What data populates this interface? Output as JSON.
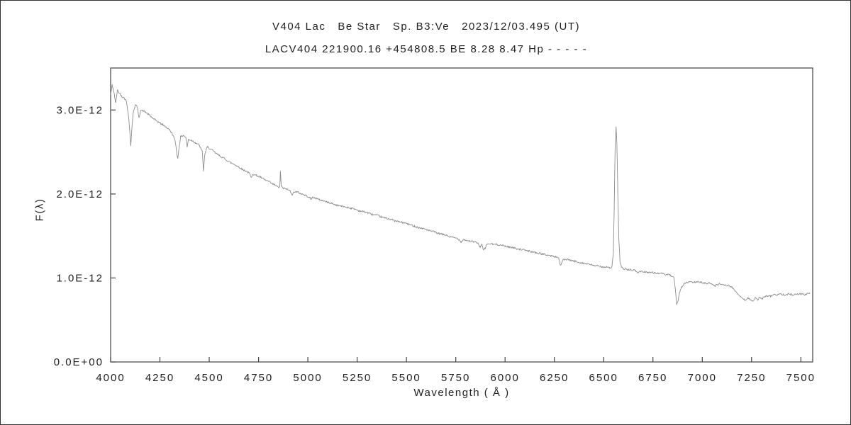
{
  "chart_data": {
    "type": "line",
    "title": "V404 Lac   Be Star   Sp. B3:Ve   2023/12/03.495 (UT)",
    "subtitle": "LACV404 221900.16 +454808.5 BE 8.28 8.47 Hp - - - - -",
    "xlabel": "Wavelength ( Å )",
    "ylabel": "F(λ)",
    "xlim": [
      4000,
      7560
    ],
    "ylim_e12": [
      0,
      3.5
    ],
    "xticks": [
      4000,
      4250,
      4500,
      4750,
      5000,
      5250,
      5500,
      5750,
      6000,
      6250,
      6500,
      6750,
      7000,
      7250,
      7500
    ],
    "yticks": [
      {
        "value_e12": 0.0,
        "label": "0.0E+00"
      },
      {
        "value_e12": 1.0,
        "label": "1.0E-12"
      },
      {
        "value_e12": 2.0,
        "label": "2.0E-12"
      },
      {
        "value_e12": 3.0,
        "label": "3.0E-12"
      }
    ],
    "grid": false,
    "legend": "none",
    "line_color": "#8c8c8c",
    "axis_color": "#444444",
    "text_color": "#222222",
    "noise_seed": 42,
    "noise_e12": 0.011,
    "features": [
      {
        "name": "H-delta absorption",
        "wavelength": 4102
      },
      {
        "name": "H-gamma absorption",
        "wavelength": 4340
      },
      {
        "name": "He I absorption",
        "wavelength": 4471
      },
      {
        "name": "H-beta emission spike",
        "wavelength": 4861
      },
      {
        "name": "Na D absorption",
        "wavelength": 5890
      },
      {
        "name": "H-alpha emission peak",
        "wavelength": 6563,
        "peak_e12": 2.8
      },
      {
        "name": "telluric O2 B-band absorption",
        "wavelength": 6870
      },
      {
        "name": "telluric H2O absorption band",
        "wavelength": 7200
      }
    ],
    "series": [
      {
        "name": "spectrum",
        "points_e12": [
          [
            4000,
            3.18
          ],
          [
            4008,
            3.3
          ],
          [
            4016,
            3.22
          ],
          [
            4026,
            3.08
          ],
          [
            4034,
            3.24
          ],
          [
            4045,
            3.2
          ],
          [
            4058,
            3.16
          ],
          [
            4070,
            3.14
          ],
          [
            4080,
            3.1
          ],
          [
            4090,
            2.95
          ],
          [
            4097,
            2.75
          ],
          [
            4102,
            2.58
          ],
          [
            4108,
            2.78
          ],
          [
            4115,
            2.98
          ],
          [
            4125,
            3.06
          ],
          [
            4135,
            3.04
          ],
          [
            4144,
            2.9
          ],
          [
            4152,
            3.0
          ],
          [
            4165,
            2.99
          ],
          [
            4180,
            2.97
          ],
          [
            4200,
            2.93
          ],
          [
            4220,
            2.89
          ],
          [
            4240,
            2.86
          ],
          [
            4260,
            2.83
          ],
          [
            4280,
            2.8
          ],
          [
            4300,
            2.76
          ],
          [
            4315,
            2.71
          ],
          [
            4328,
            2.62
          ],
          [
            4336,
            2.48
          ],
          [
            4341,
            2.42
          ],
          [
            4347,
            2.56
          ],
          [
            4355,
            2.68
          ],
          [
            4370,
            2.7
          ],
          [
            4382,
            2.67
          ],
          [
            4388,
            2.56
          ],
          [
            4395,
            2.65
          ],
          [
            4410,
            2.64
          ],
          [
            4430,
            2.61
          ],
          [
            4450,
            2.58
          ],
          [
            4465,
            2.5
          ],
          [
            4471,
            2.28
          ],
          [
            4478,
            2.48
          ],
          [
            4490,
            2.56
          ],
          [
            4510,
            2.53
          ],
          [
            4530,
            2.49
          ],
          [
            4550,
            2.46
          ],
          [
            4570,
            2.43
          ],
          [
            4590,
            2.4
          ],
          [
            4610,
            2.37
          ],
          [
            4630,
            2.35
          ],
          [
            4650,
            2.32
          ],
          [
            4670,
            2.29
          ],
          [
            4690,
            2.27
          ],
          [
            4705,
            2.24
          ],
          [
            4713,
            2.19
          ],
          [
            4720,
            2.24
          ],
          [
            4740,
            2.22
          ],
          [
            4760,
            2.2
          ],
          [
            4780,
            2.17
          ],
          [
            4800,
            2.15
          ],
          [
            4820,
            2.12
          ],
          [
            4840,
            2.1
          ],
          [
            4852,
            2.07
          ],
          [
            4858,
            2.1
          ],
          [
            4861,
            2.26
          ],
          [
            4865,
            2.1
          ],
          [
            4872,
            2.07
          ],
          [
            4890,
            2.06
          ],
          [
            4910,
            2.04
          ],
          [
            4922,
            1.99
          ],
          [
            4932,
            2.03
          ],
          [
            4950,
            2.02
          ],
          [
            4970,
            2.0
          ],
          [
            4990,
            1.98
          ],
          [
            5010,
            1.96
          ],
          [
            5015,
            1.93
          ],
          [
            5022,
            1.96
          ],
          [
            5040,
            1.95
          ],
          [
            5060,
            1.93
          ],
          [
            5080,
            1.92
          ],
          [
            5100,
            1.9
          ],
          [
            5120,
            1.89
          ],
          [
            5140,
            1.87
          ],
          [
            5160,
            1.86
          ],
          [
            5180,
            1.85
          ],
          [
            5200,
            1.84
          ],
          [
            5220,
            1.83
          ],
          [
            5240,
            1.82
          ],
          [
            5260,
            1.8
          ],
          [
            5280,
            1.79
          ],
          [
            5300,
            1.78
          ],
          [
            5320,
            1.76
          ],
          [
            5340,
            1.75
          ],
          [
            5360,
            1.74
          ],
          [
            5380,
            1.72
          ],
          [
            5400,
            1.71
          ],
          [
            5420,
            1.7
          ],
          [
            5440,
            1.68
          ],
          [
            5460,
            1.67
          ],
          [
            5480,
            1.66
          ],
          [
            5500,
            1.65
          ],
          [
            5520,
            1.63
          ],
          [
            5540,
            1.62
          ],
          [
            5560,
            1.6
          ],
          [
            5580,
            1.59
          ],
          [
            5600,
            1.58
          ],
          [
            5620,
            1.56
          ],
          [
            5640,
            1.55
          ],
          [
            5660,
            1.53
          ],
          [
            5680,
            1.52
          ],
          [
            5700,
            1.51
          ],
          [
            5720,
            1.49
          ],
          [
            5740,
            1.48
          ],
          [
            5760,
            1.47
          ],
          [
            5778,
            1.43
          ],
          [
            5788,
            1.46
          ],
          [
            5800,
            1.45
          ],
          [
            5820,
            1.44
          ],
          [
            5840,
            1.43
          ],
          [
            5860,
            1.42
          ],
          [
            5874,
            1.37
          ],
          [
            5882,
            1.4
          ],
          [
            5890,
            1.33
          ],
          [
            5898,
            1.35
          ],
          [
            5908,
            1.4
          ],
          [
            5920,
            1.41
          ],
          [
            5940,
            1.4
          ],
          [
            5960,
            1.4
          ],
          [
            5980,
            1.39
          ],
          [
            6000,
            1.38
          ],
          [
            6020,
            1.37
          ],
          [
            6040,
            1.36
          ],
          [
            6060,
            1.35
          ],
          [
            6080,
            1.34
          ],
          [
            6100,
            1.33
          ],
          [
            6120,
            1.32
          ],
          [
            6140,
            1.31
          ],
          [
            6160,
            1.3
          ],
          [
            6180,
            1.29
          ],
          [
            6200,
            1.28
          ],
          [
            6220,
            1.27
          ],
          [
            6240,
            1.26
          ],
          [
            6260,
            1.25
          ],
          [
            6272,
            1.24
          ],
          [
            6280,
            1.15
          ],
          [
            6288,
            1.18
          ],
          [
            6296,
            1.22
          ],
          [
            6310,
            1.22
          ],
          [
            6330,
            1.21
          ],
          [
            6350,
            1.2
          ],
          [
            6370,
            1.19
          ],
          [
            6390,
            1.18
          ],
          [
            6410,
            1.17
          ],
          [
            6430,
            1.16
          ],
          [
            6450,
            1.15
          ],
          [
            6470,
            1.14
          ],
          [
            6490,
            1.135
          ],
          [
            6510,
            1.13
          ],
          [
            6530,
            1.12
          ],
          [
            6542,
            1.13
          ],
          [
            6549,
            1.3
          ],
          [
            6554,
            1.9
          ],
          [
            6558,
            2.55
          ],
          [
            6563,
            2.8
          ],
          [
            6567,
            2.6
          ],
          [
            6572,
            2.0
          ],
          [
            6577,
            1.45
          ],
          [
            6583,
            1.2
          ],
          [
            6590,
            1.13
          ],
          [
            6600,
            1.11
          ],
          [
            6620,
            1.1
          ],
          [
            6640,
            1.095
          ],
          [
            6660,
            1.09
          ],
          [
            6674,
            1.06
          ],
          [
            6682,
            1.08
          ],
          [
            6700,
            1.075
          ],
          [
            6720,
            1.07
          ],
          [
            6740,
            1.065
          ],
          [
            6760,
            1.06
          ],
          [
            6780,
            1.055
          ],
          [
            6800,
            1.05
          ],
          [
            6820,
            1.04
          ],
          [
            6840,
            1.03
          ],
          [
            6856,
            1.0
          ],
          [
            6864,
            0.85
          ],
          [
            6870,
            0.68
          ],
          [
            6876,
            0.72
          ],
          [
            6884,
            0.82
          ],
          [
            6894,
            0.89
          ],
          [
            6904,
            0.92
          ],
          [
            6916,
            0.94
          ],
          [
            6930,
            0.95
          ],
          [
            6950,
            0.95
          ],
          [
            6970,
            0.95
          ],
          [
            6990,
            0.95
          ],
          [
            7010,
            0.94
          ],
          [
            7030,
            0.94
          ],
          [
            7050,
            0.93
          ],
          [
            7062,
            0.9
          ],
          [
            7072,
            0.92
          ],
          [
            7090,
            0.93
          ],
          [
            7110,
            0.92
          ],
          [
            7130,
            0.91
          ],
          [
            7150,
            0.89
          ],
          [
            7165,
            0.85
          ],
          [
            7180,
            0.81
          ],
          [
            7195,
            0.78
          ],
          [
            7210,
            0.75
          ],
          [
            7222,
            0.73
          ],
          [
            7232,
            0.77
          ],
          [
            7244,
            0.74
          ],
          [
            7256,
            0.72
          ],
          [
            7268,
            0.76
          ],
          [
            7280,
            0.74
          ],
          [
            7292,
            0.77
          ],
          [
            7304,
            0.75
          ],
          [
            7318,
            0.78
          ],
          [
            7332,
            0.79
          ],
          [
            7346,
            0.78
          ],
          [
            7360,
            0.8
          ],
          [
            7380,
            0.8
          ],
          [
            7400,
            0.81
          ],
          [
            7420,
            0.8
          ],
          [
            7440,
            0.81
          ],
          [
            7460,
            0.8
          ],
          [
            7480,
            0.81
          ],
          [
            7500,
            0.81
          ],
          [
            7520,
            0.8
          ],
          [
            7545,
            0.82
          ]
        ]
      }
    ]
  }
}
